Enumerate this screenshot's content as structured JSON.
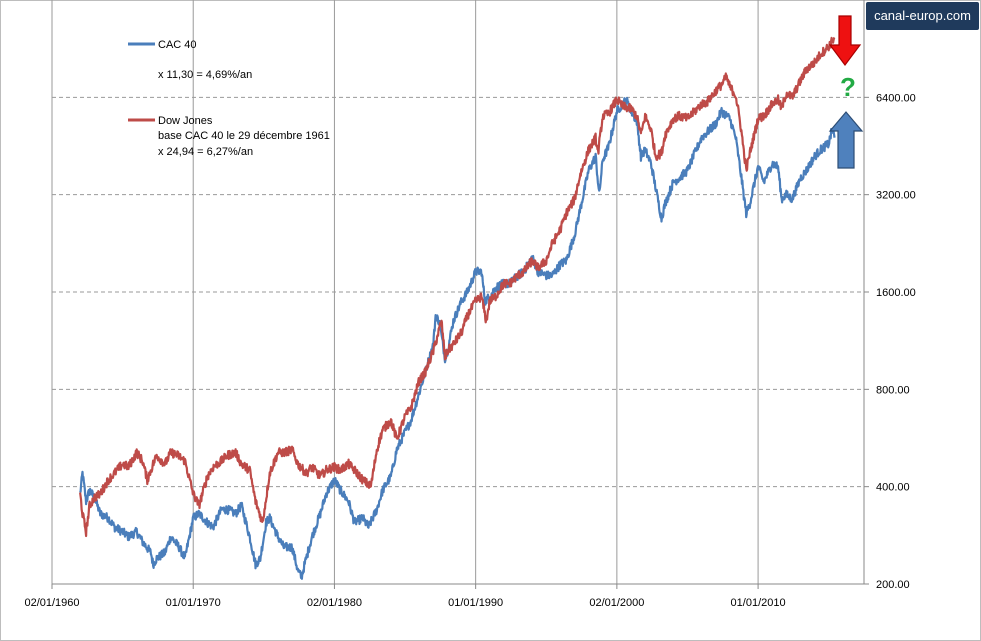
{
  "watermark": "canal-europ.com",
  "question_mark": "?",
  "chart_data": {
    "type": "line",
    "title": "",
    "xlabel": "",
    "ylabel": "",
    "y_scale": "log2",
    "ylim": [
      200,
      12800
    ],
    "yticks": [
      "200.00",
      "400.00",
      "800.00",
      "1600.00",
      "3200.00",
      "6400.00"
    ],
    "x_range_years": [
      1960,
      2017.5
    ],
    "xticks": [
      "02/01/1960",
      "01/01/1970",
      "02/01/1980",
      "01/01/1990",
      "02/01/2000",
      "01/01/2010"
    ],
    "grid": true,
    "legend_placement": "top-left",
    "legend": [
      {
        "name": "CAC 40",
        "lines": [
          "",
          "x 11,30 = 4,69%/an"
        ],
        "color": "#4a7ebb"
      },
      {
        "name": "Dow Jones",
        "lines": [
          "base CAC 40 le 29 décembre 1961",
          "x 24,94 = 6,27%/an"
        ],
        "color": "#be4b48"
      }
    ],
    "series": [
      {
        "name": "CAC 40",
        "color": "#4a7ebb",
        "x": [
          "1961-12-29",
          "1962-03-01",
          "1962-06-01",
          "1962-09-01",
          "1963-01-01",
          "1963-06-01",
          "1964-01-01",
          "1964-06-01",
          "1965-01-01",
          "1965-06-01",
          "1966-01-01",
          "1966-06-01",
          "1967-01-01",
          "1967-03-01",
          "1967-06-01",
          "1968-01-01",
          "1968-06-01",
          "1969-01-01",
          "1969-06-01",
          "1970-01-01",
          "1970-06-01",
          "1971-01-01",
          "1971-06-01",
          "1972-01-01",
          "1972-06-01",
          "1973-01-01",
          "1973-06-01",
          "1974-01-01",
          "1974-06-01",
          "1974-10-01",
          "1975-03-01",
          "1975-06-01",
          "1976-01-01",
          "1976-06-01",
          "1977-01-01",
          "1977-06-01",
          "1977-09-01",
          "1978-01-01",
          "1978-06-01",
          "1979-01-01",
          "1979-06-01",
          "1980-01-01",
          "1980-06-01",
          "1981-01-01",
          "1981-06-01",
          "1982-01-01",
          "1982-06-01",
          "1983-01-01",
          "1983-06-01",
          "1984-01-01",
          "1984-06-01",
          "1985-01-01",
          "1985-06-01",
          "1986-01-01",
          "1986-06-01",
          "1987-01-01",
          "1987-03-01",
          "1987-06-01",
          "1987-11-01",
          "1988-01-01",
          "1988-06-01",
          "1989-01-01",
          "1989-06-01",
          "1990-01-01",
          "1990-06-01",
          "1990-09-01",
          "1991-01-01",
          "1991-06-01",
          "1992-01-01",
          "1992-06-01",
          "1993-01-01",
          "1993-06-01",
          "1994-01-01",
          "1994-06-01",
          "1995-01-01",
          "1995-06-01",
          "1996-01-01",
          "1996-06-01",
          "1997-01-01",
          "1997-06-01",
          "1998-01-01",
          "1998-07-01",
          "1998-10-01",
          "1999-01-01",
          "1999-06-01",
          "2000-01-01",
          "2000-09-01",
          "2001-01-01",
          "2001-06-01",
          "2001-09-15",
          "2002-01-01",
          "2002-06-01",
          "2003-03-01",
          "2003-06-01",
          "2004-01-01",
          "2004-06-01",
          "2005-01-01",
          "2005-06-01",
          "2006-01-01",
          "2006-06-01",
          "2007-01-01",
          "2007-06-01",
          "2008-01-01",
          "2008-06-01",
          "2008-10-01",
          "2009-03-01",
          "2009-06-01",
          "2010-01-01",
          "2010-06-01",
          "2011-01-01",
          "2011-06-01",
          "2011-09-01",
          "2012-01-01",
          "2012-06-01",
          "2013-01-01",
          "2013-06-01",
          "2014-01-01",
          "2014-06-01",
          "2015-01-01",
          "2015-04-01",
          "2015-06-01"
        ],
        "y": [
          380,
          440,
          360,
          390,
          370,
          330,
          320,
          300,
          290,
          280,
          290,
          270,
          250,
          230,
          240,
          250,
          280,
          260,
          240,
          320,
          330,
          310,
          300,
          340,
          340,
          330,
          350,
          280,
          230,
          240,
          310,
          320,
          280,
          260,
          260,
          220,
          210,
          240,
          280,
          330,
          380,
          420,
          390,
          360,
          310,
          320,
          300,
          340,
          390,
          430,
          520,
          590,
          640,
          780,
          900,
          1100,
          1350,
          1300,
          1000,
          1050,
          1300,
          1500,
          1600,
          1850,
          1850,
          1500,
          1550,
          1650,
          1700,
          1700,
          1800,
          1850,
          2050,
          1850,
          1800,
          1800,
          1950,
          2000,
          2400,
          2900,
          3800,
          4200,
          3200,
          4100,
          4500,
          5800,
          6300,
          5800,
          5400,
          4200,
          4400,
          4000,
          2700,
          3000,
          3500,
          3600,
          3800,
          4200,
          4800,
          5000,
          5300,
          5800,
          5500,
          4800,
          3800,
          2800,
          3000,
          3900,
          3500,
          4000,
          3900,
          3100,
          3200,
          3100,
          3600,
          3800,
          4200,
          4400,
          4600,
          5100,
          4800
        ]
      },
      {
        "name": "Dow Jones",
        "color": "#be4b48",
        "x": [
          "1961-12-29",
          "1962-03-01",
          "1962-06-01",
          "1962-09-01",
          "1963-01-01",
          "1963-06-01",
          "1964-01-01",
          "1964-06-01",
          "1965-01-01",
          "1965-06-01",
          "1966-01-01",
          "1966-06-01",
          "1966-10-01",
          "1967-03-01",
          "1967-06-01",
          "1968-01-01",
          "1968-06-01",
          "1968-12-01",
          "1969-06-01",
          "1970-01-01",
          "1970-06-01",
          "1971-01-01",
          "1971-06-01",
          "1972-01-01",
          "1972-06-01",
          "1973-01-01",
          "1973-06-01",
          "1974-01-01",
          "1974-06-01",
          "1974-12-01",
          "1975-06-01",
          "1976-01-01",
          "1976-06-01",
          "1977-01-01",
          "1977-06-01",
          "1978-01-01",
          "1978-06-01",
          "1979-01-01",
          "1979-06-01",
          "1980-01-01",
          "1980-06-01",
          "1981-01-01",
          "1981-06-01",
          "1982-01-01",
          "1982-08-01",
          "1983-01-01",
          "1983-06-01",
          "1984-01-01",
          "1984-06-01",
          "1985-01-01",
          "1985-06-01",
          "1986-01-01",
          "1986-06-01",
          "1987-01-01",
          "1987-08-01",
          "1987-11-01",
          "1988-01-01",
          "1988-06-01",
          "1989-01-01",
          "1989-06-01",
          "1990-01-01",
          "1990-06-01",
          "1990-10-01",
          "1991-01-01",
          "1991-06-01",
          "1992-01-01",
          "1992-06-01",
          "1993-01-01",
          "1993-06-01",
          "1994-01-01",
          "1994-06-01",
          "1995-01-01",
          "1995-06-01",
          "1996-01-01",
          "1996-06-01",
          "1997-01-01",
          "1997-06-01",
          "1998-01-01",
          "1998-07-01",
          "1998-09-01",
          "1999-01-01",
          "1999-06-01",
          "2000-01-01",
          "2000-06-01",
          "2001-01-01",
          "2001-06-01",
          "2001-09-15",
          "2002-01-01",
          "2002-06-01",
          "2002-10-01",
          "2003-03-01",
          "2003-06-01",
          "2004-01-01",
          "2004-06-01",
          "2005-01-01",
          "2006-01-01",
          "2006-06-01",
          "2007-01-01",
          "2007-06-01",
          "2007-10-01",
          "2008-01-01",
          "2008-06-01",
          "2008-10-01",
          "2009-03-01",
          "2009-06-01",
          "2010-01-01",
          "2010-06-01",
          "2011-01-01",
          "2011-06-01",
          "2011-09-01",
          "2012-01-01",
          "2012-06-01",
          "2013-01-01",
          "2013-06-01",
          "2014-01-01",
          "2014-06-01",
          "2015-01-01",
          "2015-06-01"
        ],
        "y": [
          380,
          330,
          290,
          350,
          370,
          380,
          420,
          440,
          470,
          460,
          510,
          480,
          420,
          470,
          500,
          470,
          510,
          500,
          480,
          380,
          350,
          430,
          460,
          480,
          500,
          510,
          470,
          450,
          360,
          310,
          440,
          510,
          510,
          520,
          470,
          440,
          460,
          430,
          450,
          460,
          450,
          470,
          450,
          420,
          400,
          520,
          600,
          640,
          560,
          660,
          700,
          850,
          900,
          1050,
          1300,
          1000,
          1050,
          1100,
          1200,
          1350,
          1500,
          1550,
          1300,
          1500,
          1550,
          1700,
          1700,
          1800,
          1850,
          2000,
          1900,
          2000,
          2250,
          2500,
          2800,
          3100,
          3700,
          4400,
          4800,
          4300,
          5600,
          5700,
          6300,
          6000,
          5900,
          5600,
          4900,
          5600,
          5100,
          4200,
          4300,
          4900,
          5500,
          5600,
          5500,
          6100,
          6200,
          6700,
          7000,
          7400,
          6900,
          6500,
          5300,
          3800,
          4300,
          5500,
          5600,
          6100,
          6300,
          5900,
          6600,
          6400,
          7200,
          7800,
          8200,
          8700,
          9200,
          9800
        ]
      }
    ]
  }
}
